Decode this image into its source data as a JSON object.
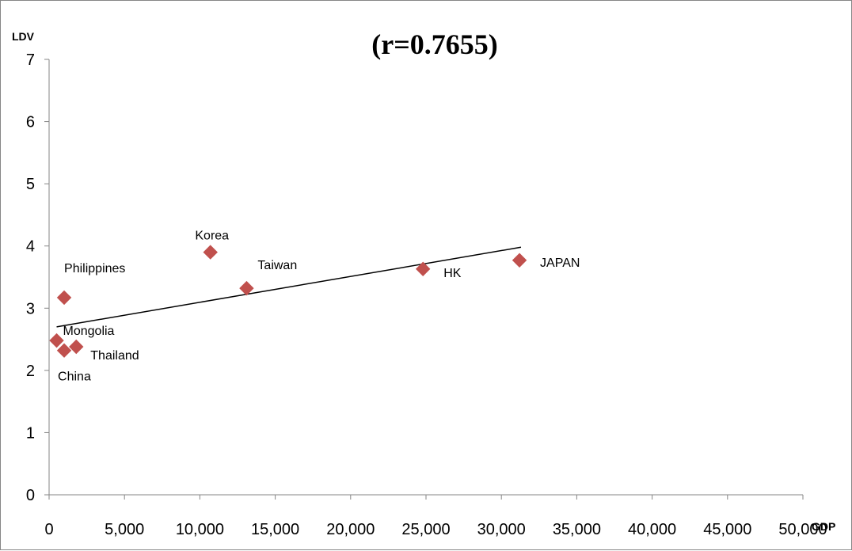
{
  "chart_data": {
    "type": "scatter",
    "title": "(r=0.7655)",
    "xlabel": "GDP",
    "ylabel": "LDV",
    "xlim": [
      0,
      50000
    ],
    "ylim": [
      0,
      7
    ],
    "x_ticks": [
      0,
      5000,
      10000,
      15000,
      20000,
      25000,
      30000,
      35000,
      40000,
      45000,
      50000
    ],
    "x_tick_labels": [
      "0",
      "5,000",
      "10,000",
      "15,000",
      "20,000",
      "25,000",
      "30,000",
      "35,000",
      "40,000",
      "45,000",
      "50,000"
    ],
    "y_ticks": [
      0,
      1,
      2,
      3,
      4,
      5,
      6,
      7
    ],
    "y_tick_labels": [
      "0",
      "1",
      "2",
      "3",
      "4",
      "5",
      "6",
      "7"
    ],
    "grid": false,
    "marker_color": "#C0504D",
    "trendline_color": "#000000",
    "points": [
      {
        "label": "Philippines",
        "x": 1000,
        "y": 3.17
      },
      {
        "label": "Mongolia",
        "x": 500,
        "y": 2.48
      },
      {
        "label": "China",
        "x": 1000,
        "y": 2.32
      },
      {
        "label": "Thailand",
        "x": 1800,
        "y": 2.38
      },
      {
        "label": "Korea",
        "x": 10700,
        "y": 3.9
      },
      {
        "label": "Taiwan",
        "x": 13100,
        "y": 3.32
      },
      {
        "label": "HK",
        "x": 24800,
        "y": 3.63
      },
      {
        "label": "JAPAN",
        "x": 31200,
        "y": 3.77
      }
    ],
    "trendline": {
      "x": [
        500,
        31300
      ],
      "y": [
        2.7,
        3.98
      ]
    }
  }
}
